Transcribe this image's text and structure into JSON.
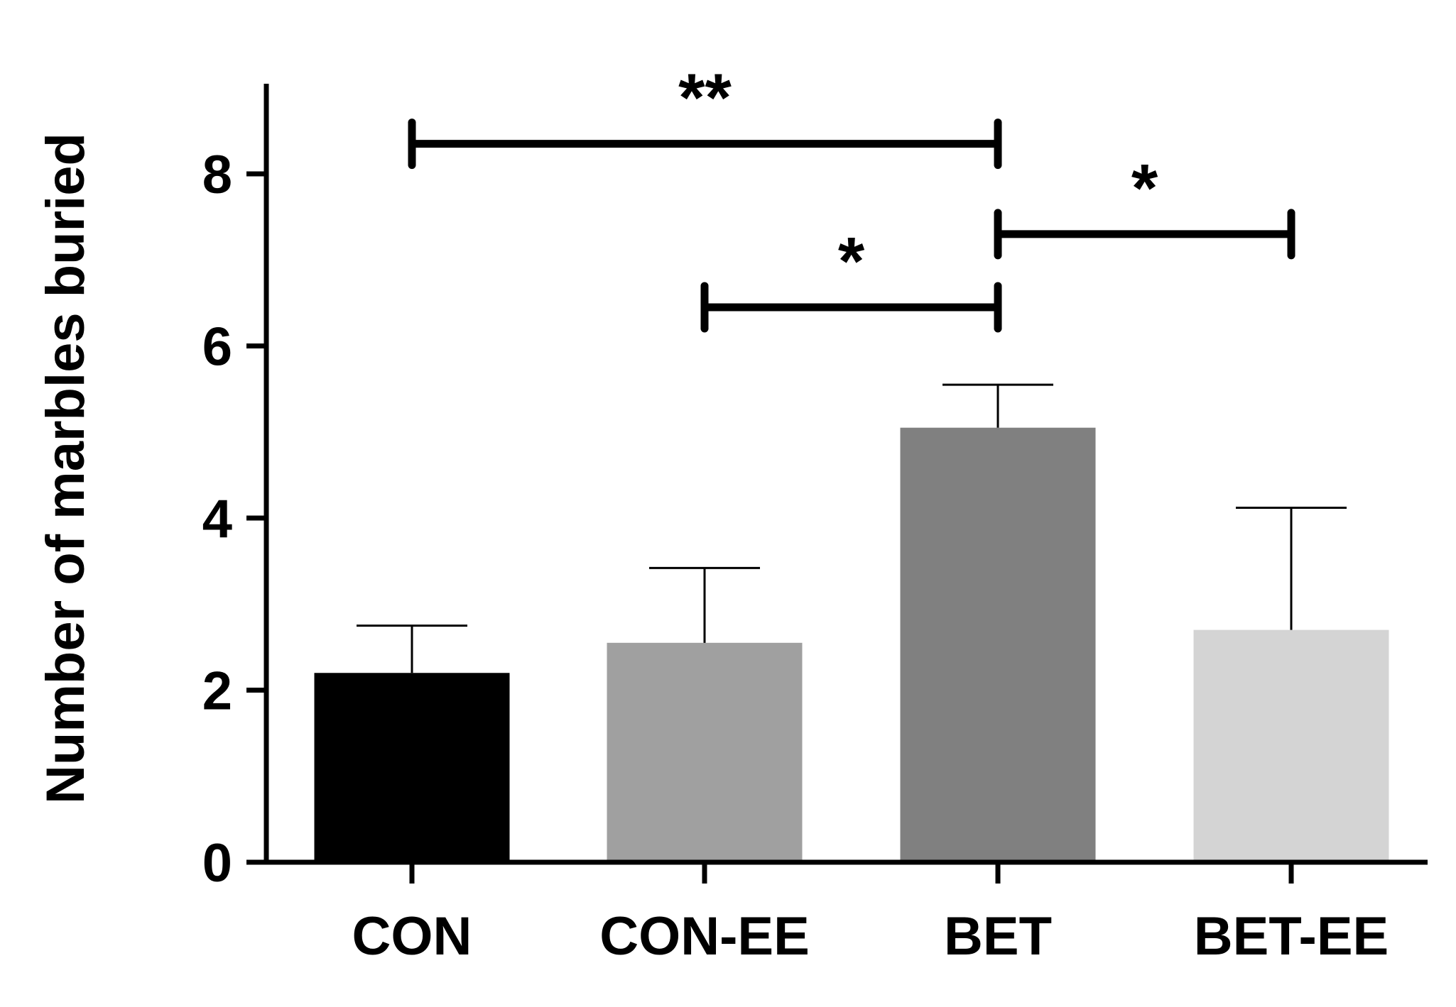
{
  "chart_data": {
    "type": "bar",
    "title": "",
    "xlabel": "",
    "ylabel": "Number of marbles buried",
    "categories": [
      "CON",
      "CON-EE",
      "BET",
      "BET-EE"
    ],
    "values": [
      2.2,
      2.55,
      5.05,
      2.7
    ],
    "error_upper": [
      0.55,
      0.87,
      0.5,
      1.42
    ],
    "bar_colors": [
      "#000000",
      "#a0a0a0",
      "#808080",
      "#d4d4d4"
    ],
    "ylim": [
      0,
      9
    ],
    "yticks": [
      0,
      2,
      4,
      6,
      8
    ],
    "grid": false,
    "legend": "none",
    "significance": [
      {
        "from": 0,
        "to": 2,
        "y": 8.35,
        "label": "**"
      },
      {
        "from": 1,
        "to": 2,
        "y": 6.45,
        "label": "*"
      },
      {
        "from": 2,
        "to": 3,
        "y": 7.3,
        "label": "*"
      }
    ]
  }
}
